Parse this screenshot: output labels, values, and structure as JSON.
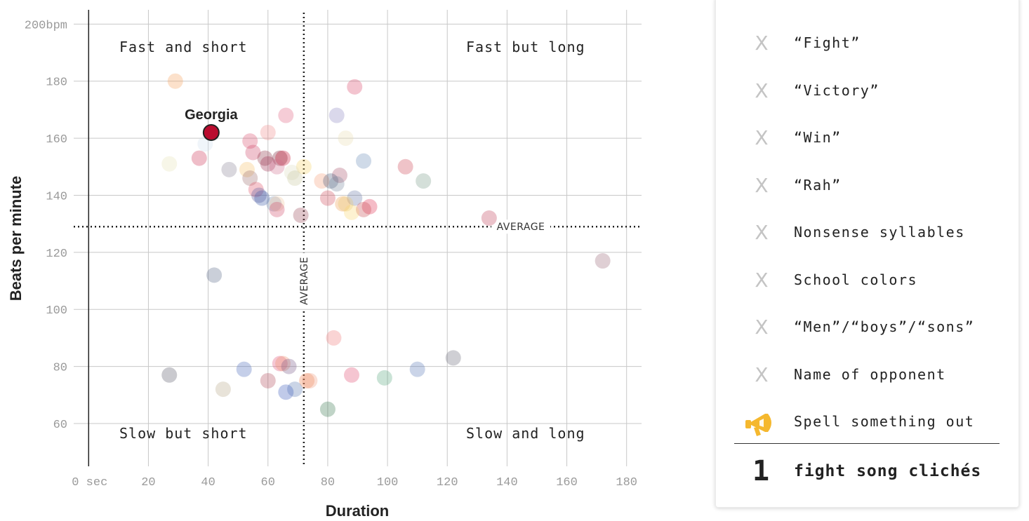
{
  "chart_data": {
    "type": "scatter",
    "xlabel": "Duration",
    "ylabel": "Beats per minute",
    "xlim": [
      -5,
      185
    ],
    "ylim": [
      45,
      205
    ],
    "x_ticks": [
      {
        "value": 0,
        "label": "0 sec"
      },
      {
        "value": 20,
        "label": "20"
      },
      {
        "value": 40,
        "label": "40"
      },
      {
        "value": 60,
        "label": "60"
      },
      {
        "value": 80,
        "label": "80"
      },
      {
        "value": 100,
        "label": "100"
      },
      {
        "value": 120,
        "label": "120"
      },
      {
        "value": 140,
        "label": "140"
      },
      {
        "value": 160,
        "label": "160"
      },
      {
        "value": 180,
        "label": "180"
      }
    ],
    "y_ticks": [
      {
        "value": 60,
        "label": "60"
      },
      {
        "value": 80,
        "label": "80"
      },
      {
        "value": 100,
        "label": "100"
      },
      {
        "value": 120,
        "label": "120"
      },
      {
        "value": 140,
        "label": "140"
      },
      {
        "value": 160,
        "label": "160"
      },
      {
        "value": 180,
        "label": "180"
      },
      {
        "value": 200,
        "label": "200bpm"
      }
    ],
    "grid": true,
    "average": {
      "x": 72,
      "y": 129,
      "x_label": "AVERAGE",
      "y_label": "AVERAGE"
    },
    "quadrants": {
      "top_left": "Fast and short",
      "top_right": "Fast but long",
      "bottom_left": "Slow but short",
      "bottom_right": "Slow and long"
    },
    "highlight": {
      "label": "Georgia",
      "x": 41,
      "y": 162,
      "color": "#ba0c2f"
    },
    "points": [
      {
        "x": 29,
        "y": 180,
        "color": "#f5a25d"
      },
      {
        "x": 89,
        "y": 178,
        "color": "#d9486b"
      },
      {
        "x": 66,
        "y": 168,
        "color": "#e0607e"
      },
      {
        "x": 83,
        "y": 168,
        "color": "#8c86c2"
      },
      {
        "x": 60,
        "y": 162,
        "color": "#f08b8b"
      },
      {
        "x": 86,
        "y": 160,
        "color": "#e8dcb0"
      },
      {
        "x": 54,
        "y": 159,
        "color": "#d94d6e"
      },
      {
        "x": 39,
        "y": 158,
        "color": "#cfe0f0"
      },
      {
        "x": 55,
        "y": 155,
        "color": "#cc4466"
      },
      {
        "x": 37,
        "y": 153,
        "color": "#cc3355"
      },
      {
        "x": 59,
        "y": 153,
        "color": "#8c3344"
      },
      {
        "x": 64,
        "y": 153,
        "color": "#7a2238"
      },
      {
        "x": 65,
        "y": 153,
        "color": "#c8102e"
      },
      {
        "x": 92,
        "y": 152,
        "color": "#6a8cb8"
      },
      {
        "x": 27,
        "y": 151,
        "color": "#e6e2b8"
      },
      {
        "x": 60,
        "y": 151,
        "color": "#a03050"
      },
      {
        "x": 63,
        "y": 150,
        "color": "#d07090"
      },
      {
        "x": 72,
        "y": 150,
        "color": "#f7d46a"
      },
      {
        "x": 106,
        "y": 150,
        "color": "#cc4455"
      },
      {
        "x": 47,
        "y": 149,
        "color": "#8a8296"
      },
      {
        "x": 53,
        "y": 149,
        "color": "#f5c06a"
      },
      {
        "x": 68,
        "y": 148,
        "color": "#dedcc0"
      },
      {
        "x": 84,
        "y": 147,
        "color": "#a8506a"
      },
      {
        "x": 54,
        "y": 146,
        "color": "#a07070"
      },
      {
        "x": 69,
        "y": 146,
        "color": "#c8c8a0"
      },
      {
        "x": 78,
        "y": 145,
        "color": "#f5a07a"
      },
      {
        "x": 81,
        "y": 145,
        "color": "#4a5a7a"
      },
      {
        "x": 112,
        "y": 145,
        "color": "#7a9a88"
      },
      {
        "x": 83,
        "y": 144,
        "color": "#7a8aa0"
      },
      {
        "x": 56,
        "y": 142,
        "color": "#e05066"
      },
      {
        "x": 57,
        "y": 140,
        "color": "#5a5a9a"
      },
      {
        "x": 58,
        "y": 139,
        "color": "#3a5aa8"
      },
      {
        "x": 80,
        "y": 139,
        "color": "#d04a5a"
      },
      {
        "x": 89,
        "y": 139,
        "color": "#6a7aa8"
      },
      {
        "x": 62,
        "y": 137,
        "color": "#7890b0"
      },
      {
        "x": 63,
        "y": 137,
        "color": "#f0c8a0"
      },
      {
        "x": 85,
        "y": 137,
        "color": "#f0a050"
      },
      {
        "x": 86,
        "y": 137,
        "color": "#e8c870"
      },
      {
        "x": 94,
        "y": 136,
        "color": "#e03050"
      },
      {
        "x": 92,
        "y": 135,
        "color": "#c84a50"
      },
      {
        "x": 63,
        "y": 135,
        "color": "#d04a6a"
      },
      {
        "x": 88,
        "y": 134,
        "color": "#f8d870"
      },
      {
        "x": 71,
        "y": 133,
        "color": "#9a4a5a"
      },
      {
        "x": 134,
        "y": 132,
        "color": "#c0405a"
      },
      {
        "x": 172,
        "y": 117,
        "color": "#9a6a7a"
      },
      {
        "x": 42,
        "y": 112,
        "color": "#5a6a8a"
      },
      {
        "x": 82,
        "y": 90,
        "color": "#f07a7a"
      },
      {
        "x": 122,
        "y": 83,
        "color": "#6a6a7a"
      },
      {
        "x": 64,
        "y": 81,
        "color": "#e0507a"
      },
      {
        "x": 65,
        "y": 81,
        "color": "#f0906a"
      },
      {
        "x": 67,
        "y": 80,
        "color": "#7a5a8a"
      },
      {
        "x": 52,
        "y": 79,
        "color": "#4a6aba"
      },
      {
        "x": 110,
        "y": 79,
        "color": "#5a7ab8"
      },
      {
        "x": 27,
        "y": 77,
        "color": "#5a5a6a"
      },
      {
        "x": 88,
        "y": 77,
        "color": "#e04a70"
      },
      {
        "x": 99,
        "y": 76,
        "color": "#5aa880"
      },
      {
        "x": 60,
        "y": 75,
        "color": "#b04a5a"
      },
      {
        "x": 73,
        "y": 75,
        "color": "#f0804a"
      },
      {
        "x": 74,
        "y": 75,
        "color": "#f09a80"
      },
      {
        "x": 45,
        "y": 72,
        "color": "#b8a888"
      },
      {
        "x": 69,
        "y": 72,
        "color": "#5a7ab0"
      },
      {
        "x": 66,
        "y": 71,
        "color": "#3a5aba"
      },
      {
        "x": 80,
        "y": 65,
        "color": "#3a7a50"
      }
    ]
  },
  "panel": {
    "items": [
      {
        "label": "“Fight”",
        "mark": "X",
        "icon": "x-icon"
      },
      {
        "label": "“Victory”",
        "mark": "X",
        "icon": "x-icon"
      },
      {
        "label": "“Win”",
        "mark": "X",
        "icon": "x-icon"
      },
      {
        "label": "“Rah”",
        "mark": "X",
        "icon": "x-icon"
      },
      {
        "label": "Nonsense syllables",
        "mark": "X",
        "icon": "x-icon"
      },
      {
        "label": "School colors",
        "mark": "X",
        "icon": "x-icon"
      },
      {
        "label": "“Men”/“boys”/“sons”",
        "mark": "X",
        "icon": "x-icon"
      },
      {
        "label": "Name of opponent",
        "mark": "X",
        "icon": "x-icon"
      },
      {
        "label": "Spell something out",
        "mark": "",
        "icon": "megaphone-icon",
        "icon_color": "#f5b82e"
      }
    ],
    "count": "1",
    "summary": "fight song clichés"
  }
}
